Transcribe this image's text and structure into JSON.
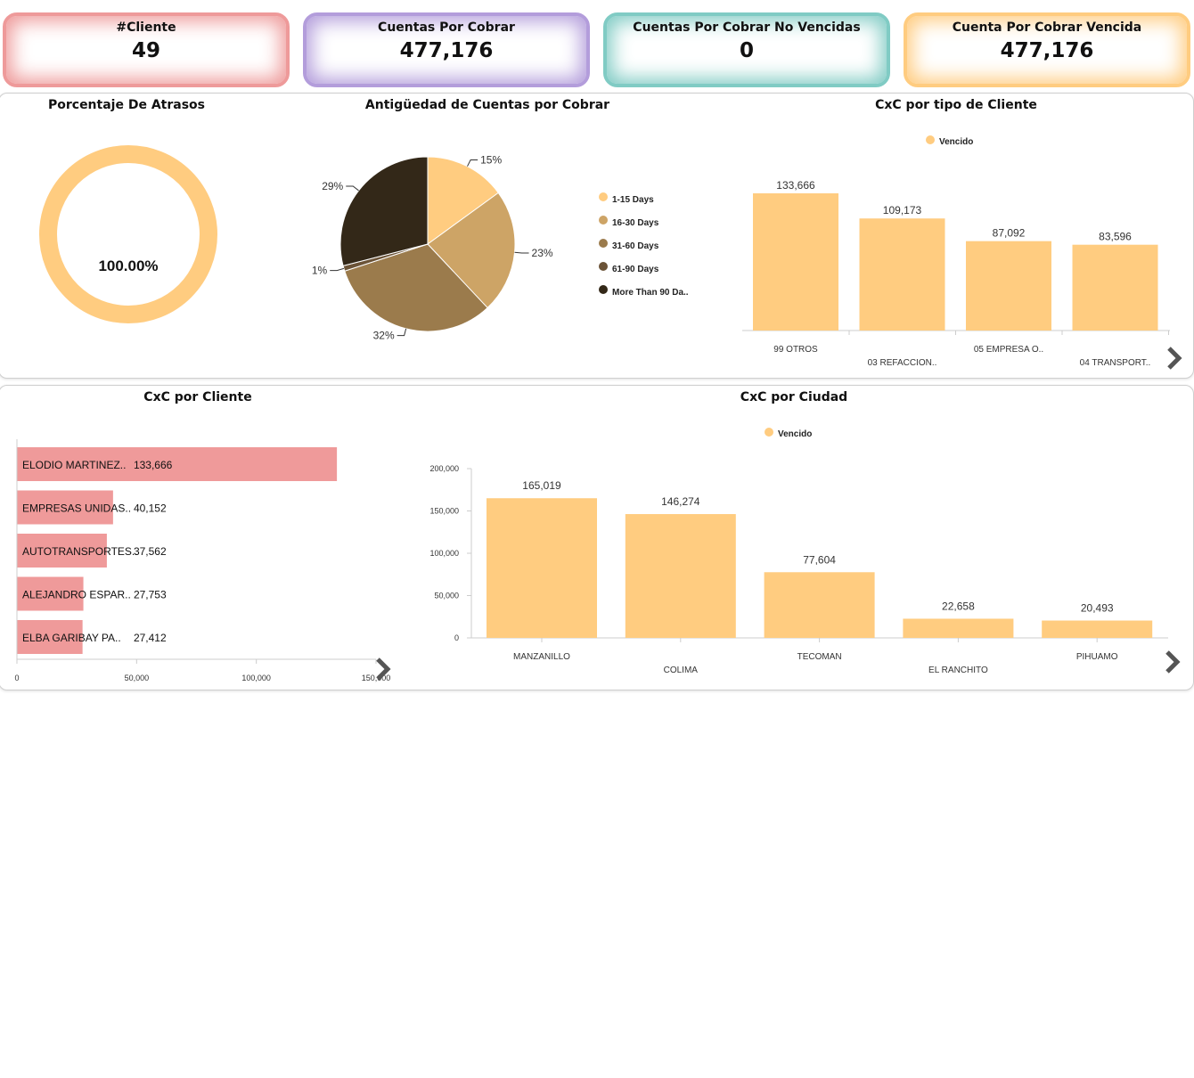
{
  "kpis": [
    {
      "title": "#Cliente",
      "value": "49",
      "color": "#ee9a9a"
    },
    {
      "title": "Cuentas Por Cobrar",
      "value": "477,176",
      "color": "#b39ddb"
    },
    {
      "title": "Cuentas Por Cobrar No Vencidas",
      "value": "0",
      "color": "#80cbc4"
    },
    {
      "title": "Cuenta Por Cobrar Vencida",
      "value": "477,176",
      "color": "#ffcc80"
    }
  ],
  "colors": {
    "accent_yellow": "#ffcc80",
    "bar_pink": "#ef9a9a",
    "pie": [
      "#ffcc80",
      "#cda466",
      "#9b7b4c",
      "#6b5337",
      "#332818"
    ]
  },
  "gauge": {
    "title": "Porcentaje De Atrasos",
    "value_label": "100.00%"
  },
  "chart_data": [
    {
      "type": "pie",
      "title": "Antigüedad de Cuentas por Cobrar",
      "categories": [
        "1-15 Days",
        "16-30 Days",
        "31-60 Days",
        "61-90 Days",
        "More Than 90 Da.."
      ],
      "values": [
        15,
        23,
        32,
        1,
        29
      ],
      "labels": [
        "15%",
        "23%",
        "32%",
        "1%",
        "29%"
      ],
      "legend_position": "right"
    },
    {
      "type": "bar",
      "title": "CxC por tipo de Cliente",
      "categories": [
        "99 OTROS",
        "03 REFACCION..",
        "05 EMPRESA O..",
        "04 TRANSPORT.."
      ],
      "series": [
        {
          "name": "Vencido",
          "values": [
            133666,
            109173,
            87092,
            83596
          ]
        }
      ],
      "value_labels": [
        "133,666",
        "109,173",
        "87,092",
        "83,596"
      ],
      "legend_position": "top"
    },
    {
      "type": "bar",
      "orientation": "horizontal",
      "title": "CxC por Cliente",
      "categories": [
        "ELODIO MARTINEZ..",
        "EMPRESAS UNIDAS..",
        "AUTOTRANSPORTES..",
        "ALEJANDRO ESPAR..",
        "ELBA GARIBAY PA.."
      ],
      "values": [
        133666,
        40152,
        37562,
        27753,
        27412
      ],
      "value_labels": [
        "133,666",
        "40,152",
        "37,562",
        "27,753",
        "27,412"
      ],
      "xlim": [
        0,
        150000
      ],
      "xticks": [
        "0",
        "50,000",
        "100,000",
        "150,000"
      ]
    },
    {
      "type": "bar",
      "title": "CxC por Ciudad",
      "categories": [
        "MANZANILLO",
        "COLIMA",
        "TECOMAN",
        "EL RANCHITO",
        "PIHUAMO"
      ],
      "series": [
        {
          "name": "Vencido",
          "values": [
            165019,
            146274,
            77604,
            22658,
            20493
          ]
        }
      ],
      "value_labels": [
        "165,019",
        "146,274",
        "77,604",
        "22,658",
        "20,493"
      ],
      "ylim": [
        0,
        200000
      ],
      "yticks": [
        "0",
        "50,000",
        "100,000",
        "150,000",
        "200,000"
      ],
      "legend_position": "top"
    }
  ]
}
